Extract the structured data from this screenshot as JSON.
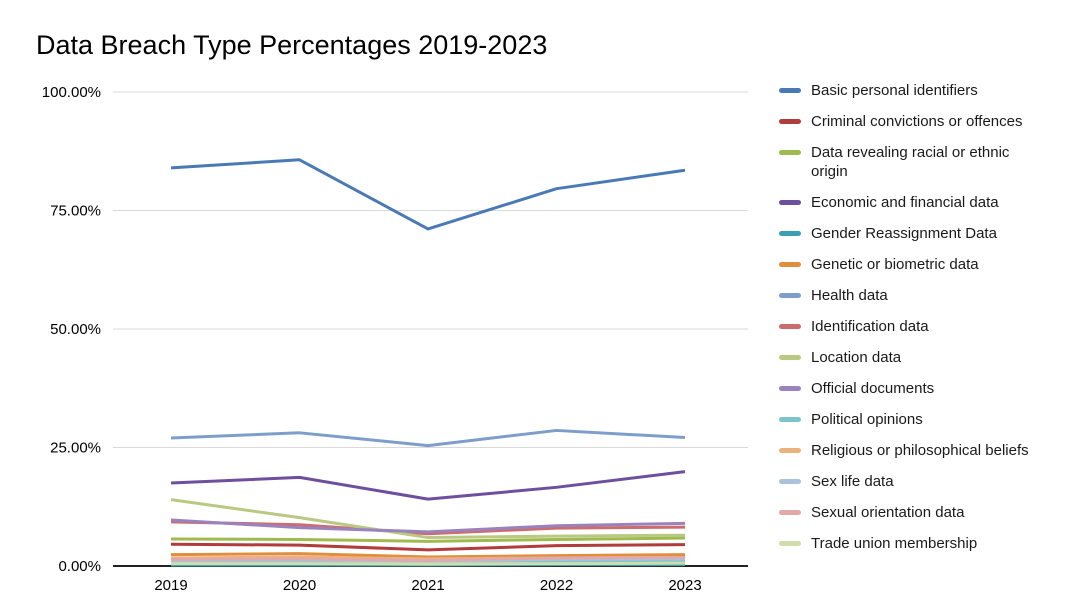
{
  "page": {
    "title": "Data Breach Type Percentages 2019-2023"
  },
  "chart_data": {
    "type": "line",
    "title": "Data Breach Type Percentages 2019-2023",
    "xlabel": "",
    "ylabel": "",
    "categories": [
      "2019",
      "2020",
      "2021",
      "2022",
      "2023"
    ],
    "y_axis": {
      "format": "percent",
      "range": [
        0,
        100
      ],
      "ticks": [
        {
          "label": "100.00%",
          "value": 100
        },
        {
          "label": "75.00%",
          "value": 75
        },
        {
          "label": "50.00%",
          "value": 50
        },
        {
          "label": "25.00%",
          "value": 25
        },
        {
          "label": "0.00%",
          "value": 0
        }
      ]
    },
    "grid": true,
    "legend_position": "right",
    "colors": {
      "grid_line": "#d9d9d9",
      "axis_line": "#212121",
      "title_text": "#000000",
      "tick_text": "#000000",
      "legend_text": "#1a1a1a"
    },
    "series": [
      {
        "name": "Basic personal identifiers",
        "color": "#4a7ab5",
        "values": [
          84.0,
          85.7,
          71.1,
          79.6,
          83.5
        ]
      },
      {
        "name": "Criminal convictions or offences",
        "color": "#b23b3b",
        "values": [
          4.6,
          4.4,
          3.4,
          4.3,
          4.5
        ]
      },
      {
        "name": "Data revealing racial or ethnic origin",
        "color": "#9fba4e",
        "values": [
          5.7,
          5.6,
          5.2,
          5.6,
          5.9
        ]
      },
      {
        "name": "Economic and financial data",
        "color": "#6e4f9d",
        "values": [
          17.5,
          18.7,
          14.1,
          16.6,
          19.9
        ]
      },
      {
        "name": "Gender Reassignment Data",
        "color": "#3aa0af",
        "values": [
          0.2,
          0.2,
          0.2,
          0.3,
          0.3
        ]
      },
      {
        "name": "Genetic or biometric data",
        "color": "#e18d3d",
        "values": [
          2.4,
          2.6,
          1.9,
          2.2,
          2.4
        ]
      },
      {
        "name": "Health data",
        "color": "#7d9eca",
        "values": [
          27.0,
          28.1,
          25.4,
          28.6,
          27.1
        ]
      },
      {
        "name": "Identification data",
        "color": "#cd6c6c",
        "values": [
          9.3,
          8.7,
          6.8,
          8.0,
          8.2
        ]
      },
      {
        "name": "Location data",
        "color": "#b9c982",
        "values": [
          14.0,
          10.2,
          6.0,
          6.3,
          6.5
        ]
      },
      {
        "name": "Official documents",
        "color": "#9a82bc",
        "values": [
          9.7,
          8.1,
          7.2,
          8.5,
          9.0
        ]
      },
      {
        "name": "Political opinions",
        "color": "#7dc3ce",
        "values": [
          0.8,
          0.9,
          0.7,
          0.9,
          1.0
        ]
      },
      {
        "name": "Religious or philosophical beliefs",
        "color": "#ecb27d",
        "values": [
          1.7,
          1.9,
          1.5,
          1.7,
          1.8
        ]
      },
      {
        "name": "Sex life data",
        "color": "#a9c3df",
        "values": [
          1.1,
          1.2,
          1.0,
          1.4,
          1.5
        ]
      },
      {
        "name": "Sexual orientation data",
        "color": "#e3a9a9",
        "values": [
          1.4,
          1.5,
          1.2,
          1.7,
          1.8
        ]
      },
      {
        "name": "Trade union membership",
        "color": "#d0ddab",
        "values": [
          0.5,
          0.5,
          0.4,
          0.5,
          0.6
        ]
      }
    ]
  }
}
